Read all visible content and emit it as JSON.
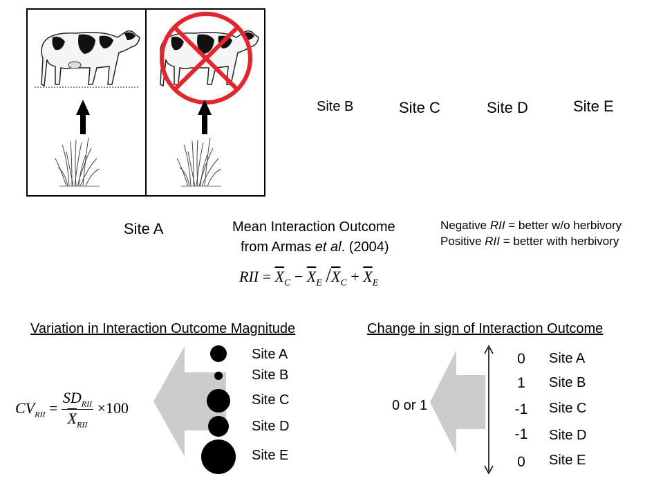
{
  "panels": {
    "site_a_label": "Site A",
    "other_sites": [
      "Site B",
      "Site C",
      "Site D",
      "Site E"
    ]
  },
  "rii": {
    "title_line1": "Mean Interaction Outcome",
    "title_line2_pre": "from Armas ",
    "title_line2_em": "et al",
    "title_line2_post": ". (2004)",
    "formula_lhs": "RII",
    "formula_rhs": "= X̄C − X̄E / X̄C + X̄E",
    "note_negative_pre": "Negative ",
    "note_negative_em": "RII",
    "note_negative_post": " = better w/o herbivory",
    "note_positive_pre": "Positive ",
    "note_positive_em": "RII",
    "note_positive_post": " = better with herbivory"
  },
  "magnitude": {
    "title": "Variation in Interaction Outcome Magnitude",
    "formula": "CV_RII = SD_RII / X̄_RII × 100",
    "sites": [
      {
        "label": "Site A",
        "size": 2
      },
      {
        "label": "Site B",
        "size": 1
      },
      {
        "label": "Site C",
        "size": 3
      },
      {
        "label": "Site D",
        "size": 2.5
      },
      {
        "label": "Site E",
        "size": 4
      }
    ]
  },
  "sign_change": {
    "title": "Change in sign of Interaction Outcome",
    "result_label": "0 or 1",
    "rows": [
      {
        "value": "0",
        "label": "Site A"
      },
      {
        "value": "1",
        "label": "Site B"
      },
      {
        "value": "-1",
        "label": "Site C"
      },
      {
        "value": "-1",
        "label": "Site D"
      },
      {
        "value": "0",
        "label": "Site E"
      }
    ]
  }
}
